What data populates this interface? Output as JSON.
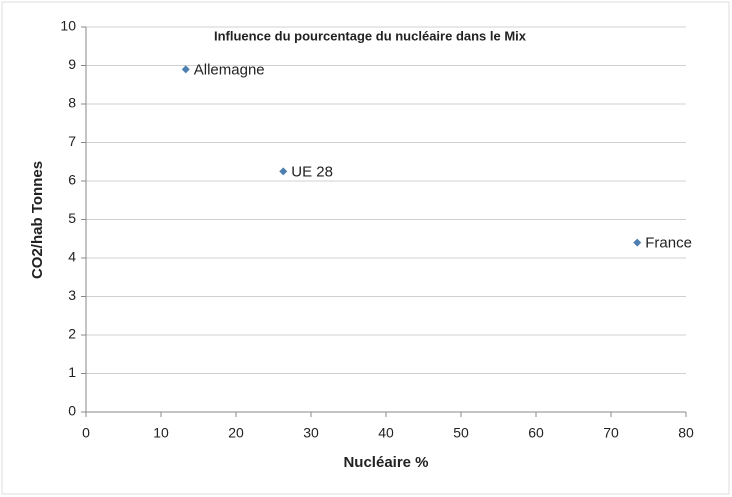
{
  "chart_data": {
    "type": "scatter",
    "title": "Influence du pourcentage du nucléaire dans le Mix",
    "x_label": "Nucléaire  %",
    "y_label": "CO2/hab Tonnes",
    "x": [
      13.3,
      26.3,
      73.5
    ],
    "values": [
      8.9,
      6.25,
      4.4
    ],
    "labels": [
      "Allemagne",
      "UE 28",
      "France"
    ],
    "color": "#4f7fb0",
    "xlim": [
      0,
      80
    ],
    "xticks": [
      0,
      10,
      20,
      30,
      40,
      50,
      60,
      70,
      80
    ],
    "ylim": [
      0,
      10
    ],
    "yticks": [
      0,
      1,
      2,
      3,
      4,
      5,
      6,
      7,
      8,
      9,
      10
    ],
    "grid": true
  }
}
